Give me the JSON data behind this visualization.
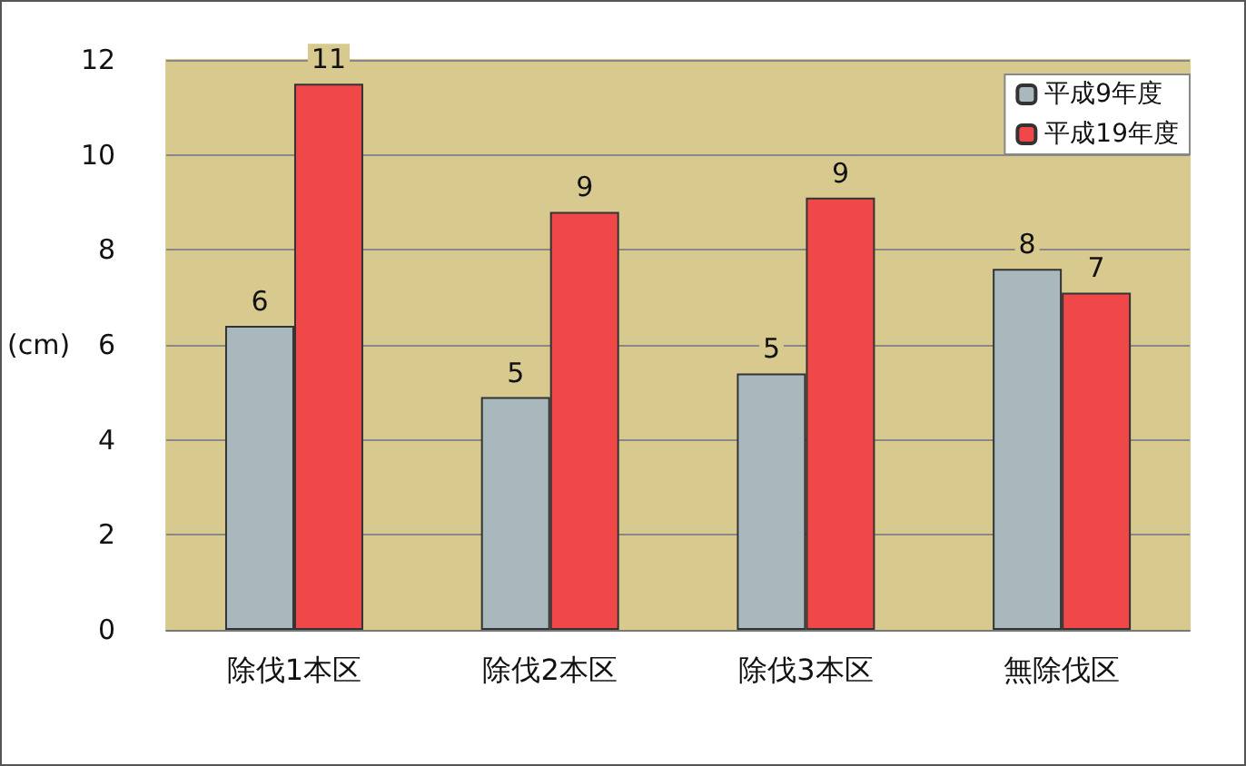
{
  "chart_data": {
    "type": "bar",
    "ylabel": "(cm)",
    "categories": [
      "除伐1本区",
      "除伐2本区",
      "除伐3本区",
      "無除伐区"
    ],
    "series": [
      {
        "name": "平成9年度",
        "color": "#a8b8bc",
        "values": [
          6.4,
          4.9,
          5.4,
          7.6
        ],
        "value_labels": [
          "6",
          "5",
          "5",
          "8"
        ]
      },
      {
        "name": "平成19年度",
        "color": "#f04848",
        "values": [
          11.5,
          8.8,
          9.1,
          7.1
        ],
        "value_labels": [
          "11",
          "9",
          "9",
          "7"
        ]
      }
    ],
    "ylim": [
      0,
      12
    ],
    "yticks": [
      0,
      2,
      4,
      6,
      8,
      10,
      12
    ],
    "grid": "y",
    "legend": "top right"
  }
}
